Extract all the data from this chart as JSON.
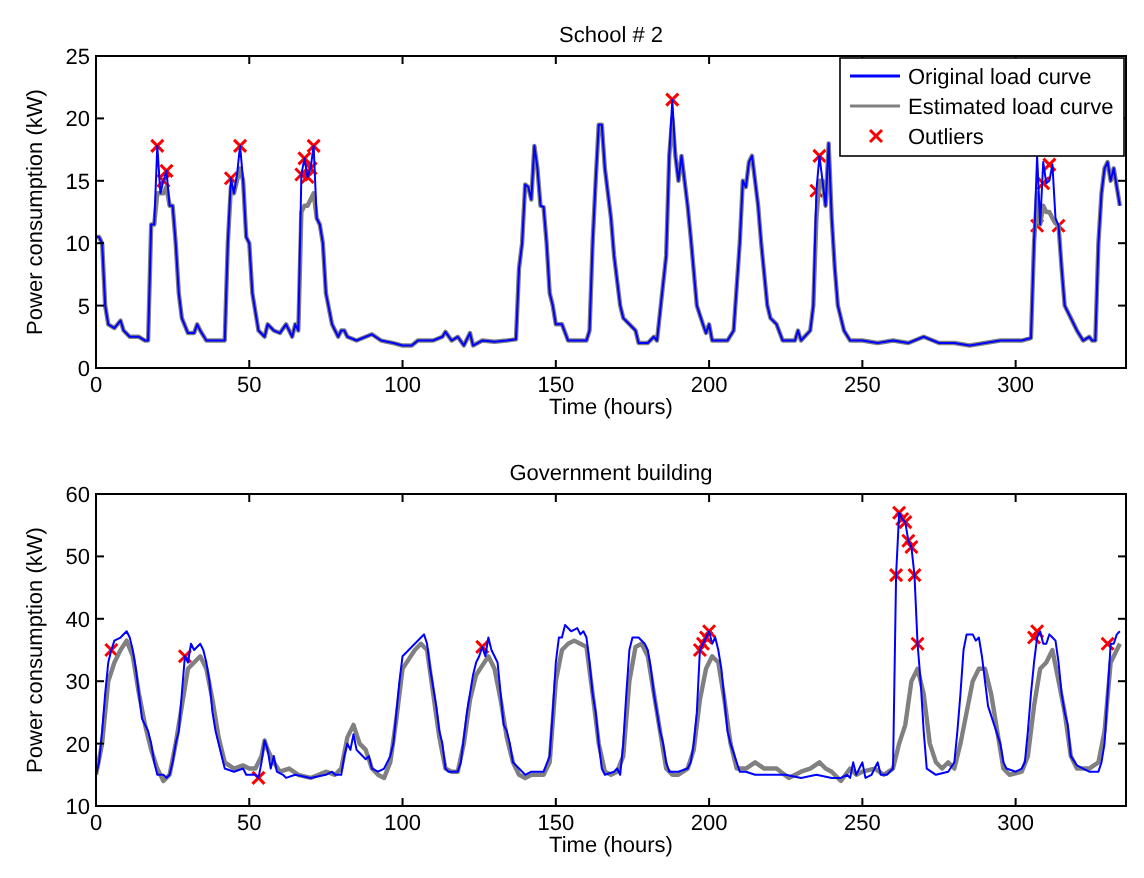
{
  "chart_data": [
    {
      "type": "line",
      "title": "School # 2",
      "xlabel": "Time (hours)",
      "ylabel": "Power consumption (kW)",
      "xlim": [
        0,
        336
      ],
      "ylim": [
        0,
        25
      ],
      "xticks": [
        0,
        50,
        100,
        150,
        200,
        250,
        300
      ],
      "yticks": [
        0,
        5,
        10,
        15,
        20,
        25
      ],
      "grid": false,
      "legend": "top right",
      "series": [
        {
          "name": "Original load curve",
          "color": "#0000ff",
          "x": [
            0,
            1,
            2,
            3,
            4,
            6,
            8,
            9,
            11,
            14,
            16,
            17,
            18,
            19,
            20,
            21,
            22,
            23,
            24,
            25,
            26,
            27,
            28,
            30,
            32,
            33,
            34,
            36,
            42,
            43,
            44,
            45,
            46,
            47,
            48,
            49,
            50,
            51,
            53,
            55,
            56,
            58,
            60,
            62,
            63,
            64,
            65,
            66,
            67,
            68,
            69,
            70,
            71,
            72,
            73,
            74,
            75,
            77,
            79,
            80,
            81,
            82,
            85,
            88,
            90,
            93,
            97,
            100,
            103,
            105,
            108,
            110,
            113,
            114,
            116,
            118,
            120,
            122,
            123,
            126,
            130,
            134,
            137,
            138,
            139,
            140,
            141,
            142,
            143,
            144,
            145,
            146,
            147,
            148,
            149,
            150,
            152,
            154,
            160,
            161,
            162,
            163,
            164,
            165,
            166,
            167,
            168,
            169,
            171,
            172,
            174,
            176,
            177,
            180,
            182,
            183,
            186,
            187,
            188,
            189,
            190,
            191,
            192,
            193,
            194,
            196,
            198,
            199,
            200,
            201,
            206,
            208,
            210,
            211,
            212,
            213,
            214,
            215,
            216,
            217,
            219,
            220,
            222,
            224,
            228,
            229,
            230,
            233,
            234,
            235,
            236,
            237,
            238,
            239,
            240,
            241,
            242,
            244,
            246,
            250,
            255,
            260,
            265,
            270,
            275,
            280,
            285,
            290,
            295,
            300,
            302,
            305,
            306,
            307,
            308,
            309,
            310,
            311,
            312,
            313,
            314,
            315,
            316,
            318,
            320,
            322,
            324,
            325,
            326,
            327,
            328,
            329,
            330,
            331,
            332,
            333,
            334
          ],
          "values": [
            10.5,
            10.5,
            10,
            5,
            3.5,
            3.2,
            3.8,
            3,
            2.5,
            2.5,
            2.2,
            2.2,
            11.5,
            11.5,
            17.8,
            14,
            15,
            15.8,
            13,
            13,
            10,
            6,
            4,
            2.8,
            2.8,
            3.5,
            3,
            2.2,
            2.2,
            10,
            15.2,
            14,
            15.5,
            17.8,
            15,
            10.5,
            10,
            6,
            3,
            2.5,
            3.5,
            3,
            2.8,
            3.5,
            3,
            2.5,
            3.5,
            3,
            15.5,
            16.8,
            15.3,
            16,
            17.8,
            12,
            11.5,
            10,
            6,
            3.5,
            2.5,
            3,
            3,
            2.5,
            2.2,
            2.5,
            2.7,
            2.2,
            2,
            1.8,
            1.8,
            2.2,
            2.2,
            2.2,
            2.5,
            2.9,
            2.2,
            2.5,
            1.8,
            2.8,
            1.8,
            2.2,
            2.1,
            2.2,
            2.3,
            8,
            10,
            14.7,
            14.5,
            13.5,
            17.8,
            16,
            13,
            12.9,
            10,
            6,
            5,
            3.5,
            3.5,
            2.2,
            2.2,
            3,
            10,
            15,
            19.5,
            19.5,
            16,
            14,
            12,
            9,
            5,
            4,
            3.5,
            3,
            2,
            2,
            2.5,
            2.2,
            9,
            17,
            21.5,
            17,
            15,
            17,
            15,
            13,
            10.5,
            5,
            3.5,
            2.8,
            3.5,
            2.2,
            2.2,
            3,
            10,
            15,
            14.5,
            16.5,
            17,
            15,
            13,
            10,
            5,
            4,
            3.5,
            2.2,
            2.2,
            3,
            2.2,
            3,
            5,
            14.2,
            17,
            15,
            13,
            18,
            12,
            8,
            5,
            3,
            2.2,
            2.2,
            2,
            2.2,
            2,
            2.5,
            2,
            2,
            1.8,
            2,
            2.2,
            2.2,
            2.2,
            2.4,
            10,
            17,
            11.5,
            16.5,
            14.8,
            15,
            16.3,
            12,
            11.4,
            8,
            5,
            4,
            3,
            2.2,
            2.5,
            2.2,
            2.2,
            10,
            14,
            16,
            16.5,
            15,
            16,
            14.5,
            13
          ]
        },
        {
          "name": "Estimated load curve",
          "color": "#808080",
          "x": [
            0,
            1,
            2,
            3,
            4,
            6,
            8,
            9,
            11,
            14,
            16,
            17,
            18,
            19,
            20,
            21,
            22,
            23,
            24,
            25,
            26,
            27,
            28,
            30,
            32,
            33,
            34,
            36,
            42,
            43,
            44,
            45,
            46,
            47,
            48,
            49,
            50,
            51,
            53,
            55,
            56,
            58,
            60,
            62,
            63,
            64,
            65,
            66,
            67,
            68,
            69,
            70,
            71,
            72,
            73,
            74,
            75,
            77,
            79,
            80,
            81,
            82,
            85,
            88,
            90,
            93,
            97,
            100,
            103,
            105,
            108,
            110,
            113,
            114,
            116,
            118,
            120,
            122,
            123,
            126,
            130,
            134,
            137,
            138,
            139,
            140,
            141,
            142,
            143,
            144,
            145,
            146,
            147,
            148,
            149,
            150,
            152,
            154,
            160,
            161,
            162,
            163,
            164,
            165,
            166,
            167,
            168,
            169,
            171,
            172,
            174,
            176,
            177,
            180,
            182,
            183,
            186,
            187,
            188,
            189,
            190,
            191,
            192,
            193,
            194,
            196,
            198,
            199,
            200,
            201,
            206,
            208,
            210,
            211,
            212,
            213,
            214,
            215,
            216,
            217,
            219,
            220,
            222,
            224,
            228,
            229,
            230,
            233,
            234,
            235,
            236,
            237,
            238,
            239,
            240,
            241,
            242,
            244,
            246,
            250,
            255,
            260,
            265,
            270,
            275,
            280,
            285,
            290,
            295,
            300,
            302,
            305,
            306,
            307,
            308,
            309,
            310,
            311,
            312,
            313,
            314,
            315,
            316,
            318,
            320,
            322,
            324,
            325,
            326,
            327,
            328,
            329,
            330,
            331,
            332,
            333,
            334
          ],
          "values": [
            10.5,
            10.5,
            10,
            5,
            3.5,
            3.2,
            3.8,
            3,
            2.5,
            2.5,
            2.2,
            2.2,
            11.5,
            11.5,
            14,
            14,
            14,
            14.5,
            13,
            13,
            10,
            6,
            4,
            2.8,
            2.8,
            3.5,
            3,
            2.2,
            2.2,
            10,
            14.5,
            14,
            15,
            16,
            15,
            10.5,
            10,
            6,
            3,
            2.5,
            3.5,
            3,
            2.8,
            3.5,
            3,
            2.5,
            3.5,
            3,
            12.5,
            13,
            13,
            13.5,
            14,
            12,
            11.5,
            10,
            6,
            3.5,
            2.5,
            3,
            3,
            2.5,
            2.2,
            2.5,
            2.7,
            2.2,
            2,
            1.8,
            1.8,
            2.2,
            2.2,
            2.2,
            2.5,
            2.9,
            2.2,
            2.5,
            1.8,
            2.8,
            1.8,
            2.2,
            2.1,
            2.2,
            2.3,
            8,
            10,
            14.7,
            14.5,
            13.5,
            17.8,
            16,
            13,
            12.9,
            10,
            6,
            5,
            3.5,
            3.5,
            2.2,
            2.2,
            3,
            10,
            15,
            19.5,
            19.5,
            16,
            14,
            12,
            9,
            5,
            4,
            3.5,
            3,
            2,
            2,
            2.5,
            2.2,
            9,
            17,
            20,
            17,
            15,
            17,
            15,
            13,
            10.5,
            5,
            3.5,
            2.8,
            3.5,
            2.2,
            2.2,
            3,
            10,
            15,
            14.5,
            16.5,
            17,
            15,
            13,
            10,
            5,
            4,
            3.5,
            2.2,
            2.2,
            3,
            2.2,
            3,
            5,
            12,
            15,
            15,
            13,
            18,
            12,
            8,
            5,
            3,
            2.2,
            2.2,
            2,
            2.2,
            2,
            2.5,
            2,
            2,
            1.8,
            2,
            2.2,
            2.2,
            2.2,
            2.4,
            10,
            14,
            11.5,
            13,
            12.5,
            12.5,
            12,
            11.6,
            11.4,
            8,
            5,
            4,
            3,
            2.2,
            2.5,
            2.2,
            2.2,
            10,
            14,
            16,
            16.5,
            15,
            16,
            14.5,
            13
          ]
        },
        {
          "name": "Outliers",
          "color": "#ff0000",
          "type": "scatter",
          "marker": "cross",
          "x": [
            20,
            22,
            23,
            44,
            47,
            67,
            68,
            69,
            70,
            71,
            188,
            235,
            236,
            307,
            309,
            311,
            314
          ],
          "values": [
            17.8,
            15,
            15.8,
            15.2,
            17.8,
            15.5,
            16.8,
            15.3,
            16,
            17.8,
            21.5,
            14.2,
            17,
            11.4,
            14.8,
            16.3,
            11.4
          ]
        }
      ]
    },
    {
      "type": "line",
      "title": "Government building",
      "xlabel": "Time (hours)",
      "ylabel": "Power consumption (kW)",
      "xlim": [
        0,
        336
      ],
      "ylim": [
        10,
        60
      ],
      "xticks": [
        0,
        50,
        100,
        150,
        200,
        250,
        300
      ],
      "yticks": [
        10,
        20,
        30,
        40,
        50,
        60
      ],
      "grid": false,
      "legend": false,
      "series": [
        {
          "color": "#0000ff",
          "x": [
            0,
            1,
            2,
            3,
            4,
            5,
            6,
            8,
            10,
            11,
            12,
            13,
            14,
            15,
            17,
            18,
            19,
            20,
            22,
            23,
            24,
            25,
            26,
            27,
            28,
            29,
            30,
            31,
            32,
            34,
            35,
            36,
            37,
            38,
            39,
            40,
            41,
            42,
            45,
            48,
            49,
            52,
            53,
            54,
            55,
            56,
            57,
            58,
            59,
            61,
            62,
            65,
            70,
            75,
            77,
            78,
            80,
            81,
            82,
            83,
            84,
            85,
            86,
            88,
            89,
            90,
            92,
            94,
            96,
            97,
            98,
            99,
            100,
            102,
            104,
            106,
            107,
            108,
            109,
            110,
            111,
            112,
            113,
            114,
            115,
            118,
            119,
            120,
            121,
            122,
            123,
            124,
            125,
            126,
            127,
            128,
            129,
            130,
            131,
            132,
            133,
            134,
            135,
            136,
            138,
            140,
            142,
            144,
            146,
            148,
            149,
            150,
            151,
            152,
            153,
            155,
            157,
            158,
            159,
            160,
            161,
            162,
            163,
            164,
            165,
            166,
            169,
            170,
            171,
            172,
            173,
            174,
            175,
            177,
            179,
            180,
            181,
            182,
            183,
            184,
            185,
            186,
            187,
            190,
            193,
            194,
            195,
            196,
            197,
            198,
            199,
            200,
            201,
            202,
            203,
            204,
            205,
            206,
            207,
            209,
            210,
            212,
            215,
            220,
            225,
            230,
            235,
            240,
            243,
            245,
            246,
            247,
            248,
            250,
            251,
            253,
            255,
            256,
            258,
            260,
            261,
            262,
            263,
            264,
            265,
            266,
            267,
            268,
            269,
            270,
            271,
            274,
            278,
            280,
            281,
            282,
            283,
            284,
            286,
            287,
            288,
            289,
            290,
            291,
            293,
            295,
            296,
            297,
            300,
            302,
            303,
            304,
            305,
            306,
            307,
            308,
            309,
            310,
            311,
            312,
            313,
            314,
            315,
            316,
            317,
            318,
            320,
            322,
            324,
            327,
            328,
            329,
            330,
            331,
            332,
            333,
            334
          ],
          "values": [
            15,
            17,
            22,
            28,
            33,
            35,
            36.5,
            37,
            38,
            37,
            35,
            32,
            28,
            24,
            22,
            20,
            17,
            15,
            15,
            14.5,
            15,
            17,
            20,
            22,
            28,
            34,
            33,
            36,
            35,
            36,
            35,
            33,
            30,
            25,
            22,
            20,
            18,
            16,
            15.5,
            16,
            15,
            15,
            14.5,
            17,
            20.5,
            19,
            16,
            18,
            15.5,
            15,
            14.5,
            15,
            14.5,
            15,
            15.5,
            15,
            15,
            18,
            20,
            19,
            21.5,
            19,
            18.5,
            17.5,
            18,
            16,
            15.5,
            16,
            18,
            20,
            25,
            30,
            34,
            35,
            36,
            37,
            37.5,
            36,
            32,
            29,
            26,
            22,
            20,
            16,
            15.5,
            15.5,
            17,
            21,
            25,
            28,
            31,
            33,
            34,
            35.5,
            34,
            37,
            35,
            34,
            33,
            28,
            23,
            22,
            20,
            17,
            16,
            15,
            15.5,
            15.5,
            15.5,
            18,
            25,
            33,
            37,
            37,
            39,
            38,
            38.5,
            37.5,
            38,
            37,
            33,
            28,
            25,
            20,
            16,
            15,
            15.5,
            16,
            15,
            20,
            28,
            35,
            37,
            37,
            36,
            35,
            32,
            28,
            25,
            22,
            20,
            17,
            15.5,
            15.5,
            16,
            17,
            20,
            25,
            35,
            36,
            37,
            38,
            36,
            37,
            35,
            32,
            27,
            22,
            20,
            17,
            15.5,
            15.5,
            15,
            15,
            15,
            14.5,
            15,
            14.5,
            14.5,
            15,
            14.5,
            17,
            15,
            17,
            14.5,
            15,
            17,
            15,
            15,
            16,
            47,
            57,
            56,
            55.5,
            52.5,
            51.5,
            47,
            36,
            30,
            22,
            16,
            15,
            15.5,
            17,
            22,
            28,
            35,
            37.5,
            37.5,
            36.5,
            37,
            34,
            30,
            26,
            23,
            20,
            17,
            16,
            15.5,
            16,
            17,
            22,
            28,
            33,
            37,
            38,
            36,
            36,
            37.5,
            37,
            36.5,
            33,
            28,
            25,
            23,
            18,
            16.5,
            16,
            15.5,
            15.5,
            17,
            20,
            28,
            36,
            36,
            37.5,
            38
          ]
        },
        {
          "color": "#808080",
          "x": [
            0,
            2,
            4,
            6,
            8,
            10,
            12,
            14,
            16,
            18,
            20,
            22,
            24,
            26,
            28,
            30,
            32,
            34,
            36,
            38,
            40,
            42,
            45,
            48,
            50,
            52,
            54,
            55,
            56,
            58,
            60,
            63,
            66,
            70,
            75,
            78,
            80,
            82,
            84,
            86,
            88,
            90,
            92,
            94,
            96,
            98,
            100,
            102,
            104,
            106,
            108,
            110,
            112,
            114,
            116,
            118,
            120,
            122,
            124,
            126,
            128,
            130,
            132,
            134,
            136,
            138,
            140,
            142,
            144,
            146,
            148,
            150,
            152,
            154,
            156,
            158,
            160,
            162,
            164,
            166,
            168,
            170,
            172,
            174,
            176,
            178,
            180,
            182,
            184,
            186,
            188,
            190,
            193,
            195,
            197,
            199,
            201,
            203,
            205,
            207,
            209,
            212,
            215,
            218,
            222,
            226,
            230,
            233,
            236,
            238,
            240,
            243,
            246,
            248,
            250,
            254,
            257,
            260,
            262,
            264,
            266,
            268,
            270,
            272,
            274,
            276,
            278,
            280,
            282,
            284,
            286,
            288,
            290,
            292,
            294,
            296,
            298,
            302,
            304,
            306,
            308,
            310,
            312,
            314,
            316,
            318,
            320,
            324,
            327,
            329,
            331,
            333,
            334
          ],
          "values": [
            15,
            20,
            30,
            33,
            35,
            36.5,
            34,
            28,
            23,
            19,
            16,
            14,
            15,
            20,
            26,
            32,
            33,
            34,
            32,
            27,
            21,
            17,
            16,
            16.5,
            16,
            16,
            18,
            20.5,
            19,
            17,
            15.5,
            16,
            15,
            14.5,
            15.5,
            15,
            16,
            21,
            23,
            20,
            19,
            16,
            15,
            14.5,
            17,
            24,
            32,
            33.5,
            35,
            36,
            35,
            28,
            21,
            16,
            15.5,
            15.5,
            20,
            27,
            31,
            32.5,
            34,
            32,
            27,
            21,
            17,
            15,
            14.5,
            15,
            15,
            15,
            17,
            30,
            35,
            36,
            36.5,
            36,
            35.5,
            28,
            20,
            15.5,
            15,
            15.5,
            18,
            30,
            35.5,
            36,
            34,
            28,
            22,
            16,
            15,
            15,
            16,
            19,
            27,
            32,
            34,
            33,
            27,
            20,
            16,
            16,
            17,
            16,
            16,
            14.5,
            15.5,
            16,
            17,
            16,
            15.5,
            14,
            16,
            15,
            15.5,
            16,
            15,
            16,
            20,
            23,
            30,
            32,
            28,
            20,
            17,
            16,
            17,
            16,
            20,
            25,
            30,
            32,
            32,
            28,
            22,
            16,
            15,
            15.5,
            18,
            26,
            32,
            33,
            35,
            30,
            25,
            18,
            16,
            16,
            17,
            22,
            33,
            35,
            36
          ]
        },
        {
          "color": "#ff0000",
          "type": "scatter",
          "marker": "cross",
          "x": [
            5,
            29,
            53,
            126,
            197,
            198,
            199,
            200,
            261,
            262,
            263,
            264,
            265,
            266,
            267,
            268,
            306,
            307,
            330
          ],
          "values": [
            35,
            34,
            14.5,
            35.5,
            35,
            36,
            37,
            38,
            47,
            57,
            56,
            55.5,
            52.5,
            51.5,
            47,
            36,
            37,
            38,
            36
          ]
        }
      ]
    }
  ]
}
